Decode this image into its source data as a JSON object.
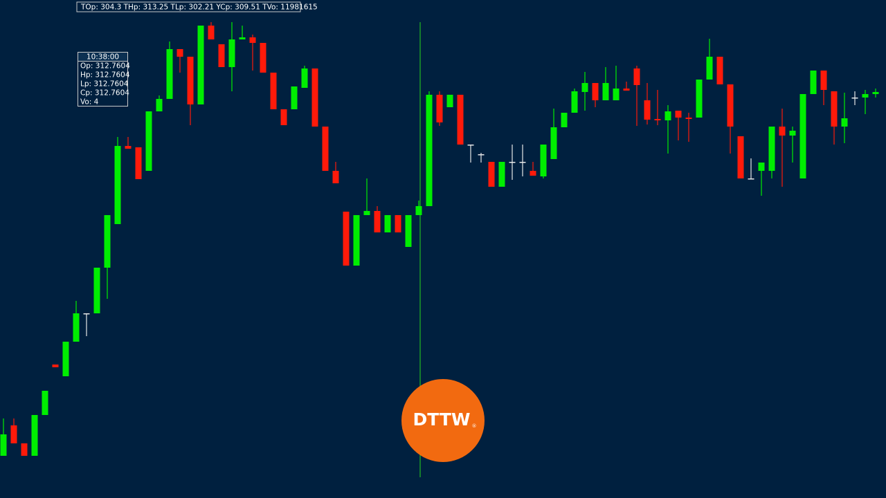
{
  "chart_data": {
    "type": "candlestick",
    "summary": "TOp: 304.3 THp: 313.25 TLp: 302.21 YCp: 309.51 TVo: 11981615",
    "tooltip": {
      "time": "10:38:00",
      "lines": [
        "Op: 312.7604",
        "Hp: 312.7604",
        "Lp: 312.7604",
        "Cp: 312.7604",
        "Vo: 4"
      ]
    },
    "logo": {
      "text": "DTTW",
      "mark": "®"
    },
    "up_color": "#00ee00",
    "down_color": "#ff1a0a",
    "flat_color": "#e8e8e8",
    "cursor_color": "#22b822",
    "ylim": [
      300,
      314
    ],
    "open": [
      301.22,
      302.1,
      301.58,
      301.22,
      302.4,
      303.86,
      303.52,
      304.52,
      305.34,
      305.34,
      306.66,
      307.92,
      310.18,
      310.14,
      309.46,
      311.18,
      311.54,
      312.98,
      312.76,
      311.38,
      313.66,
      313.12,
      312.46,
      313.26,
      313.32,
      313.16,
      312.3,
      311.24,
      311.24,
      311.86,
      312.42,
      310.74,
      309.46,
      308.28,
      306.72,
      308.18,
      308.3,
      307.68,
      308.18,
      307.26,
      308.18,
      308.44,
      311.66,
      311.3,
      311.66,
      310.22,
      309.94,
      309.72,
      309.0,
      309.72,
      309.72,
      309.46,
      309.3,
      309.8,
      310.72,
      311.14,
      311.74,
      312.0,
      311.5,
      311.5,
      311.84,
      312.42,
      311.5,
      310.96,
      310.92,
      311.2,
      311.0,
      311.0,
      312.1,
      312.76,
      311.96,
      310.46,
      309.24,
      309.46,
      309.46,
      310.74,
      310.48,
      309.24,
      311.68,
      312.36,
      311.76,
      310.74,
      311.58,
      311.58,
      311.68
    ],
    "high": [
      302.3,
      302.3,
      301.58,
      302.4,
      303.1,
      303.86,
      304.52,
      305.7,
      305.34,
      306.66,
      308.18,
      310.44,
      310.44,
      310.14,
      311.18,
      311.64,
      313.2,
      312.98,
      312.76,
      313.66,
      313.76,
      313.12,
      313.76,
      313.66,
      313.4,
      313.16,
      312.3,
      311.24,
      311.9,
      312.5,
      312.42,
      310.74,
      309.72,
      308.28,
      308.18,
      309.24,
      308.44,
      308.18,
      308.18,
      308.18,
      308.6,
      311.76,
      311.76,
      311.66,
      311.66,
      310.22,
      309.98,
      309.72,
      309.72,
      310.22,
      310.22,
      309.72,
      310.22,
      311.26,
      311.14,
      311.84,
      312.32,
      312.0,
      312.46,
      312.5,
      312.04,
      312.5,
      312.0,
      311.8,
      311.36,
      311.2,
      311.14,
      312.1,
      313.28,
      312.76,
      311.96,
      310.46,
      309.82,
      309.7,
      310.74,
      311.26,
      310.74,
      311.68,
      312.36,
      312.36,
      311.76,
      311.72,
      311.76,
      311.8,
      311.84
    ],
    "low": [
      301.22,
      301.58,
      301.22,
      301.22,
      302.4,
      303.78,
      303.52,
      304.52,
      304.68,
      305.34,
      305.76,
      307.92,
      310.1,
      309.22,
      309.46,
      311.18,
      311.54,
      312.3,
      310.78,
      311.38,
      313.26,
      312.46,
      311.76,
      313.26,
      312.36,
      312.3,
      311.24,
      310.78,
      311.24,
      311.86,
      310.74,
      309.46,
      309.1,
      306.72,
      306.72,
      308.18,
      307.68,
      307.68,
      307.68,
      307.26,
      308.18,
      308.44,
      310.76,
      311.3,
      310.22,
      309.7,
      309.7,
      309.0,
      309.0,
      309.2,
      309.3,
      309.32,
      309.24,
      309.8,
      310.72,
      311.14,
      311.2,
      311.3,
      311.5,
      311.5,
      311.78,
      310.76,
      310.8,
      310.78,
      309.96,
      310.34,
      310.3,
      311.0,
      312.1,
      311.96,
      309.96,
      309.24,
      309.24,
      308.74,
      309.24,
      309.0,
      309.7,
      309.24,
      311.68,
      311.36,
      310.22,
      310.26,
      311.36,
      311.1,
      311.58
    ],
    "close": [
      301.84,
      301.58,
      301.22,
      302.4,
      303.1,
      303.78,
      304.52,
      305.34,
      305.34,
      306.66,
      308.18,
      310.18,
      310.1,
      309.22,
      311.18,
      311.54,
      312.98,
      312.76,
      311.38,
      313.66,
      313.26,
      312.46,
      313.26,
      313.32,
      313.16,
      312.3,
      311.24,
      310.78,
      311.9,
      312.42,
      310.74,
      309.46,
      309.1,
      306.72,
      308.18,
      308.3,
      307.68,
      308.18,
      307.68,
      308.18,
      308.44,
      311.66,
      310.86,
      311.66,
      310.22,
      310.22,
      309.94,
      309.0,
      309.72,
      309.72,
      309.72,
      309.32,
      310.22,
      310.72,
      311.14,
      311.76,
      312.0,
      311.5,
      312.0,
      311.84,
      311.78,
      311.94,
      310.94,
      310.92,
      311.18,
      311.0,
      310.96,
      312.1,
      312.76,
      311.96,
      310.74,
      309.24,
      309.24,
      309.7,
      310.74,
      310.48,
      310.62,
      311.68,
      312.36,
      311.8,
      310.74,
      310.98,
      311.58,
      311.68,
      311.74
    ]
  }
}
